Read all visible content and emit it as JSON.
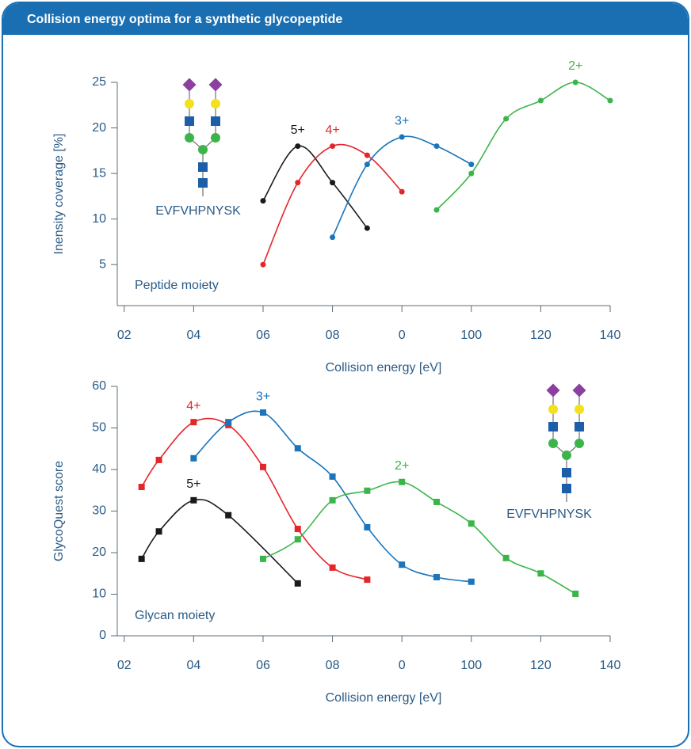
{
  "header": {
    "title": "Collision energy optima for a synthetic glycopeptide"
  },
  "chart_data": [
    {
      "type": "line",
      "xlabel": "Collision energy [eV]",
      "ylabel": "Inensity coverage [%]",
      "annotation": "Peptide moiety",
      "structure_label": "EVFVHPNYSK",
      "xlim": [
        18,
        160
      ],
      "ylim": [
        0.5,
        25
      ],
      "xticks": [
        {
          "value": 20,
          "label": "02"
        },
        {
          "value": 40,
          "label": "04"
        },
        {
          "value": 60,
          "label": "06"
        },
        {
          "value": 80,
          "label": "08"
        },
        {
          "value": 100,
          "label": "0"
        },
        {
          "value": 120,
          "label": "100"
        },
        {
          "value": 140,
          "label": "120"
        },
        {
          "value": 160,
          "label": "140"
        }
      ],
      "yticks": [
        5,
        10,
        15,
        20,
        25
      ],
      "series": [
        {
          "name": "5+",
          "color": "#1a1a1a",
          "marker": "circle",
          "x": [
            60,
            70,
            80,
            90
          ],
          "values": [
            12,
            18,
            14,
            9
          ]
        },
        {
          "name": "4+",
          "color": "#e4262b",
          "marker": "circle",
          "x": [
            60,
            70,
            80,
            90,
            100
          ],
          "values": [
            5,
            14,
            18,
            17,
            13
          ]
        },
        {
          "name": "3+",
          "color": "#1a75bb",
          "marker": "circle",
          "x": [
            80,
            90,
            100,
            110,
            120
          ],
          "values": [
            8,
            16,
            19,
            18,
            16
          ]
        },
        {
          "name": "2+",
          "color": "#3bb54a",
          "marker": "circle",
          "x": [
            110,
            120,
            130,
            140,
            150,
            160
          ],
          "values": [
            11,
            15,
            21,
            23,
            25,
            23
          ]
        }
      ]
    },
    {
      "type": "line",
      "xlabel": "Collision energy [eV]",
      "ylabel": "GlycoQuest score",
      "annotation": "Glycan moiety",
      "structure_label": "EVFVHPNYSK",
      "xlim": [
        18,
        160
      ],
      "ylim": [
        0,
        60
      ],
      "xticks": [
        {
          "value": 20,
          "label": "02"
        },
        {
          "value": 40,
          "label": "04"
        },
        {
          "value": 60,
          "label": "06"
        },
        {
          "value": 80,
          "label": "08"
        },
        {
          "value": 100,
          "label": "0"
        },
        {
          "value": 120,
          "label": "100"
        },
        {
          "value": 140,
          "label": "120"
        },
        {
          "value": 160,
          "label": "140"
        }
      ],
      "yticks": [
        0,
        10,
        20,
        30,
        40,
        50,
        60
      ],
      "series": [
        {
          "name": "4+",
          "color": "#e4262b",
          "marker": "square",
          "x": [
            25,
            30,
            40,
            50,
            60,
            70,
            80,
            90
          ],
          "values": [
            35.8,
            42.3,
            51.4,
            50.7,
            40.6,
            25.7,
            16.4,
            13.5
          ]
        },
        {
          "name": "3+",
          "color": "#1a75bb",
          "marker": "square",
          "x": [
            40,
            50,
            60,
            70,
            80,
            90,
            100,
            110,
            120
          ],
          "values": [
            42.7,
            51.4,
            53.7,
            45.1,
            38.3,
            26.1,
            17.1,
            14.1,
            13
          ]
        },
        {
          "name": "5+",
          "color": "#1a1a1a",
          "marker": "square",
          "x": [
            25,
            30,
            40,
            50,
            70
          ],
          "values": [
            18.5,
            25.1,
            32.6,
            29,
            12.6
          ]
        },
        {
          "name": "2+",
          "color": "#3bb54a",
          "marker": "square",
          "x": [
            60,
            70,
            80,
            90,
            100,
            110,
            120,
            130,
            140,
            150
          ],
          "values": [
            18.5,
            23.2,
            32.6,
            34.9,
            37,
            32.2,
            27,
            18.7,
            15,
            10.1
          ]
        }
      ]
    }
  ]
}
